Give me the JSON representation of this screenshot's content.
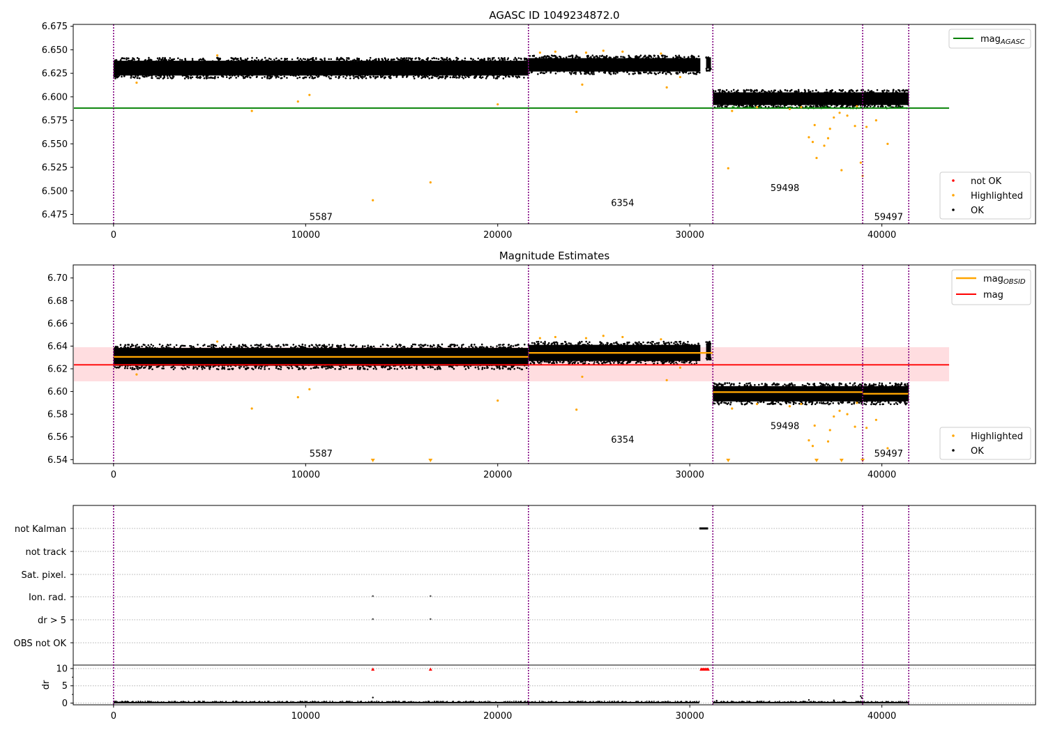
{
  "figure": {
    "title": "AGASC ID 1049234872.0",
    "colors": {
      "ok": "#000000",
      "highlighted": "#ffa500",
      "not_ok": "#ff0000",
      "agasc_line": "#008000",
      "obsid_line": "#ffa500",
      "mag_line": "#ff0000",
      "mag_band": "#ffdde0",
      "obs_boundary": "#800080",
      "flag_marker": "#555555"
    }
  },
  "chart_data": [
    {
      "type": "scatter",
      "title": "AGASC ID 1049234872.0",
      "xlabel": "",
      "ylabel": "",
      "xlim": [
        -2100,
        48000
      ],
      "ylim": [
        6.465,
        6.677
      ],
      "x_ticks": [
        0,
        10000,
        20000,
        30000,
        40000
      ],
      "y_ticks": [
        6.475,
        6.5,
        6.525,
        6.55,
        6.575,
        6.6,
        6.625,
        6.65,
        6.675
      ],
      "y_tick_labels": [
        "6.475",
        "6.500",
        "6.525",
        "6.550",
        "6.575",
        "6.600",
        "6.625",
        "6.650",
        "6.675"
      ],
      "legend_placement": [
        "top-right",
        "bottom-right"
      ],
      "legend": {
        "lines": [
          {
            "label": "mag",
            "sub": "AGASC"
          }
        ],
        "markers": [
          {
            "label": "not OK",
            "kind": "not_ok"
          },
          {
            "label": "Highlighted",
            "kind": "highlighted"
          },
          {
            "label": "OK",
            "kind": "ok"
          }
        ]
      },
      "hlines": [
        {
          "name": "mag_AGASC",
          "y": 6.588,
          "x_range": [
            -2100,
            43500
          ],
          "color": "#008000"
        }
      ],
      "obs_boundaries": [
        0,
        21600,
        31200,
        39000,
        41400
      ],
      "ok_bands": [
        {
          "x_range": [
            0,
            21600
          ],
          "y_center": 6.6305,
          "y_spread": 0.0105
        },
        {
          "x_range": [
            21600,
            30550
          ],
          "y_center": 6.634,
          "y_spread": 0.0095
        },
        {
          "x_range": [
            30850,
            31100
          ],
          "y_center": 6.636,
          "y_spread": 0.008
        },
        {
          "x_range": [
            31200,
            41400
          ],
          "y_center": 6.598,
          "y_spread": 0.009
        }
      ],
      "highlighted_points": [
        {
          "x": 5400,
          "y": 6.644
        },
        {
          "x": 7200,
          "y": 6.585
        },
        {
          "x": 9600,
          "y": 6.595
        },
        {
          "x": 10200,
          "y": 6.602
        },
        {
          "x": 13500,
          "y": 6.49
        },
        {
          "x": 16500,
          "y": 6.509
        },
        {
          "x": 20000,
          "y": 6.592
        },
        {
          "x": 24100,
          "y": 6.584
        },
        {
          "x": 24400,
          "y": 6.613
        },
        {
          "x": 22200,
          "y": 6.647
        },
        {
          "x": 23000,
          "y": 6.648
        },
        {
          "x": 24600,
          "y": 6.647
        },
        {
          "x": 25500,
          "y": 6.649
        },
        {
          "x": 26500,
          "y": 6.648
        },
        {
          "x": 28500,
          "y": 6.646
        },
        {
          "x": 28800,
          "y": 6.61
        },
        {
          "x": 29500,
          "y": 6.621
        },
        {
          "x": 1200,
          "y": 6.615
        },
        {
          "x": 32000,
          "y": 6.524
        },
        {
          "x": 32200,
          "y": 6.585
        },
        {
          "x": 33500,
          "y": 6.589
        },
        {
          "x": 35200,
          "y": 6.587
        },
        {
          "x": 35800,
          "y": 6.589
        },
        {
          "x": 36200,
          "y": 6.557
        },
        {
          "x": 36400,
          "y": 6.552
        },
        {
          "x": 36500,
          "y": 6.57
        },
        {
          "x": 36600,
          "y": 6.535
        },
        {
          "x": 37000,
          "y": 6.548
        },
        {
          "x": 37200,
          "y": 6.556
        },
        {
          "x": 37300,
          "y": 6.566
        },
        {
          "x": 37500,
          "y": 6.578
        },
        {
          "x": 37800,
          "y": 6.583
        },
        {
          "x": 37900,
          "y": 6.522
        },
        {
          "x": 38200,
          "y": 6.58
        },
        {
          "x": 38600,
          "y": 6.569
        },
        {
          "x": 38900,
          "y": 6.53
        },
        {
          "x": 39000,
          "y": 6.516
        },
        {
          "x": 39200,
          "y": 6.568
        },
        {
          "x": 39700,
          "y": 6.575
        },
        {
          "x": 40300,
          "y": 6.55
        },
        {
          "x": 38700,
          "y": 6.59
        }
      ],
      "annotations": [
        {
          "text": "5587",
          "x": 10200,
          "y": 6.469
        },
        {
          "text": "6354",
          "x": 25900,
          "y": 6.484
        },
        {
          "text": "59498",
          "x": 34200,
          "y": 6.5
        },
        {
          "text": "59497",
          "x": 39600,
          "y": 6.469
        }
      ]
    },
    {
      "type": "scatter",
      "title": "Magnitude Estimates",
      "xlabel": "",
      "ylabel": "",
      "xlim": [
        -2100,
        48000
      ],
      "ylim": [
        6.5365,
        6.7115
      ],
      "x_ticks": [
        0,
        10000,
        20000,
        30000,
        40000
      ],
      "y_ticks": [
        6.54,
        6.56,
        6.58,
        6.6,
        6.62,
        6.64,
        6.66,
        6.68,
        6.7
      ],
      "y_tick_labels": [
        "6.54",
        "6.56",
        "6.58",
        "6.60",
        "6.62",
        "6.64",
        "6.66",
        "6.68",
        "6.70"
      ],
      "legend_placement": [
        "top-right",
        "bottom-right"
      ],
      "legend": {
        "lines": [
          {
            "label": "mag",
            "sub": "OBSID"
          },
          {
            "label": "mag",
            "sub": ""
          }
        ],
        "markers": [
          {
            "label": "Highlighted",
            "kind": "highlighted"
          },
          {
            "label": "OK",
            "kind": "ok"
          }
        ]
      },
      "hlines": [
        {
          "name": "mag",
          "y": 6.6235,
          "x_range": [
            -2100,
            43500
          ],
          "color": "#ff0000"
        }
      ],
      "band": {
        "y_range": [
          6.609,
          6.639
        ],
        "x_range": [
          -2100,
          43500
        ]
      },
      "obsid_segments": [
        {
          "x_range": [
            0,
            21600
          ],
          "y": 6.6305
        },
        {
          "x_range": [
            21600,
            31200
          ],
          "y": 6.634
        },
        {
          "x_range": [
            31200,
            39000
          ],
          "y": 6.5995
        },
        {
          "x_range": [
            39000,
            41400
          ],
          "y": 6.598
        }
      ],
      "obs_boundaries": [
        0,
        21600,
        31200,
        39000,
        41400
      ],
      "ok_bands": [
        {
          "x_range": [
            0,
            21600
          ],
          "y_center": 6.6305,
          "y_spread": 0.0105
        },
        {
          "x_range": [
            21600,
            30550
          ],
          "y_center": 6.634,
          "y_spread": 0.0095
        },
        {
          "x_range": [
            30850,
            31100
          ],
          "y_center": 6.636,
          "y_spread": 0.008
        },
        {
          "x_range": [
            31200,
            41400
          ],
          "y_center": 6.598,
          "y_spread": 0.009
        }
      ],
      "highlighted_points": [
        {
          "x": 5400,
          "y": 6.644
        },
        {
          "x": 7200,
          "y": 6.585
        },
        {
          "x": 9600,
          "y": 6.595
        },
        {
          "x": 10200,
          "y": 6.602
        },
        {
          "x": 20000,
          "y": 6.592
        },
        {
          "x": 24100,
          "y": 6.584
        },
        {
          "x": 24400,
          "y": 6.613
        },
        {
          "x": 22200,
          "y": 6.647
        },
        {
          "x": 23000,
          "y": 6.648
        },
        {
          "x": 24600,
          "y": 6.647
        },
        {
          "x": 25500,
          "y": 6.649
        },
        {
          "x": 26500,
          "y": 6.648
        },
        {
          "x": 28500,
          "y": 6.646
        },
        {
          "x": 28800,
          "y": 6.61
        },
        {
          "x": 29500,
          "y": 6.621
        },
        {
          "x": 1200,
          "y": 6.615
        },
        {
          "x": 32200,
          "y": 6.585
        },
        {
          "x": 33500,
          "y": 6.589
        },
        {
          "x": 35200,
          "y": 6.587
        },
        {
          "x": 35800,
          "y": 6.589
        },
        {
          "x": 36200,
          "y": 6.557
        },
        {
          "x": 36400,
          "y": 6.552
        },
        {
          "x": 36500,
          "y": 6.57
        },
        {
          "x": 37200,
          "y": 6.556
        },
        {
          "x": 37300,
          "y": 6.566
        },
        {
          "x": 37500,
          "y": 6.578
        },
        {
          "x": 37800,
          "y": 6.583
        },
        {
          "x": 38200,
          "y": 6.58
        },
        {
          "x": 38600,
          "y": 6.569
        },
        {
          "x": 39200,
          "y": 6.568
        },
        {
          "x": 39700,
          "y": 6.575
        },
        {
          "x": 40300,
          "y": 6.55
        },
        {
          "x": 38700,
          "y": 6.59
        }
      ],
      "clipped_points": [
        {
          "x": 13500,
          "y": 6.538
        },
        {
          "x": 16500,
          "y": 6.538
        },
        {
          "x": 32000,
          "y": 6.538
        },
        {
          "x": 36600,
          "y": 6.538
        },
        {
          "x": 37900,
          "y": 6.538
        },
        {
          "x": 39000,
          "y": 6.538
        }
      ],
      "annotations": [
        {
          "text": "5587",
          "x": 10200,
          "y": 6.5425
        },
        {
          "text": "6354",
          "x": 25900,
          "y": 6.555
        },
        {
          "text": "59498",
          "x": 34200,
          "y": 6.567
        },
        {
          "text": "59497",
          "x": 39600,
          "y": 6.5425
        }
      ]
    },
    {
      "type": "scatter",
      "title": "",
      "xlabel": "",
      "ylabel": "dr",
      "xlim": [
        -2100,
        48000
      ],
      "x_ticks": [
        0,
        10000,
        20000,
        30000,
        40000
      ],
      "grid": true,
      "flag_rows": [
        "not Kalman",
        "not track",
        "Sat. pixel.",
        "Ion. rad.",
        "dr > 5",
        "OBS not OK"
      ],
      "flag_points": [
        {
          "row": "not Kalman",
          "x_range": [
            30500,
            30950
          ]
        },
        {
          "row": "Ion. rad.",
          "x": 13500
        },
        {
          "row": "Ion. rad.",
          "x": 16500
        },
        {
          "row": "dr > 5",
          "x": 13500
        },
        {
          "row": "dr > 5",
          "x": 16500
        }
      ],
      "dr_ylim": [
        -0.5,
        11
      ],
      "dr_ticks": [
        0,
        5,
        10
      ],
      "dr_baseline_ranges": [
        [
          0,
          30500
        ],
        [
          31200,
          41400
        ]
      ],
      "dr_red_points": [
        {
          "x": 13500,
          "y": 9.8
        },
        {
          "x": 16500,
          "y": 9.8
        },
        {
          "x": 30600,
          "y": 9.8
        },
        {
          "x": 30700,
          "y": 9.8
        },
        {
          "x": 30800,
          "y": 9.8
        },
        {
          "x": 30900,
          "y": 9.8
        },
        {
          "x": 30950,
          "y": 9.8
        }
      ],
      "dr_black_points": [
        {
          "x": 13500,
          "y": 1.6
        },
        {
          "x": 38900,
          "y": 2.0
        },
        {
          "x": 38950,
          "y": 1.5
        },
        {
          "x": 36200,
          "y": 0.9
        },
        {
          "x": 37500,
          "y": 0.8
        },
        {
          "x": 31400,
          "y": 0.7
        }
      ],
      "obs_boundaries": [
        0,
        21600,
        31200,
        39000,
        41400
      ]
    }
  ]
}
